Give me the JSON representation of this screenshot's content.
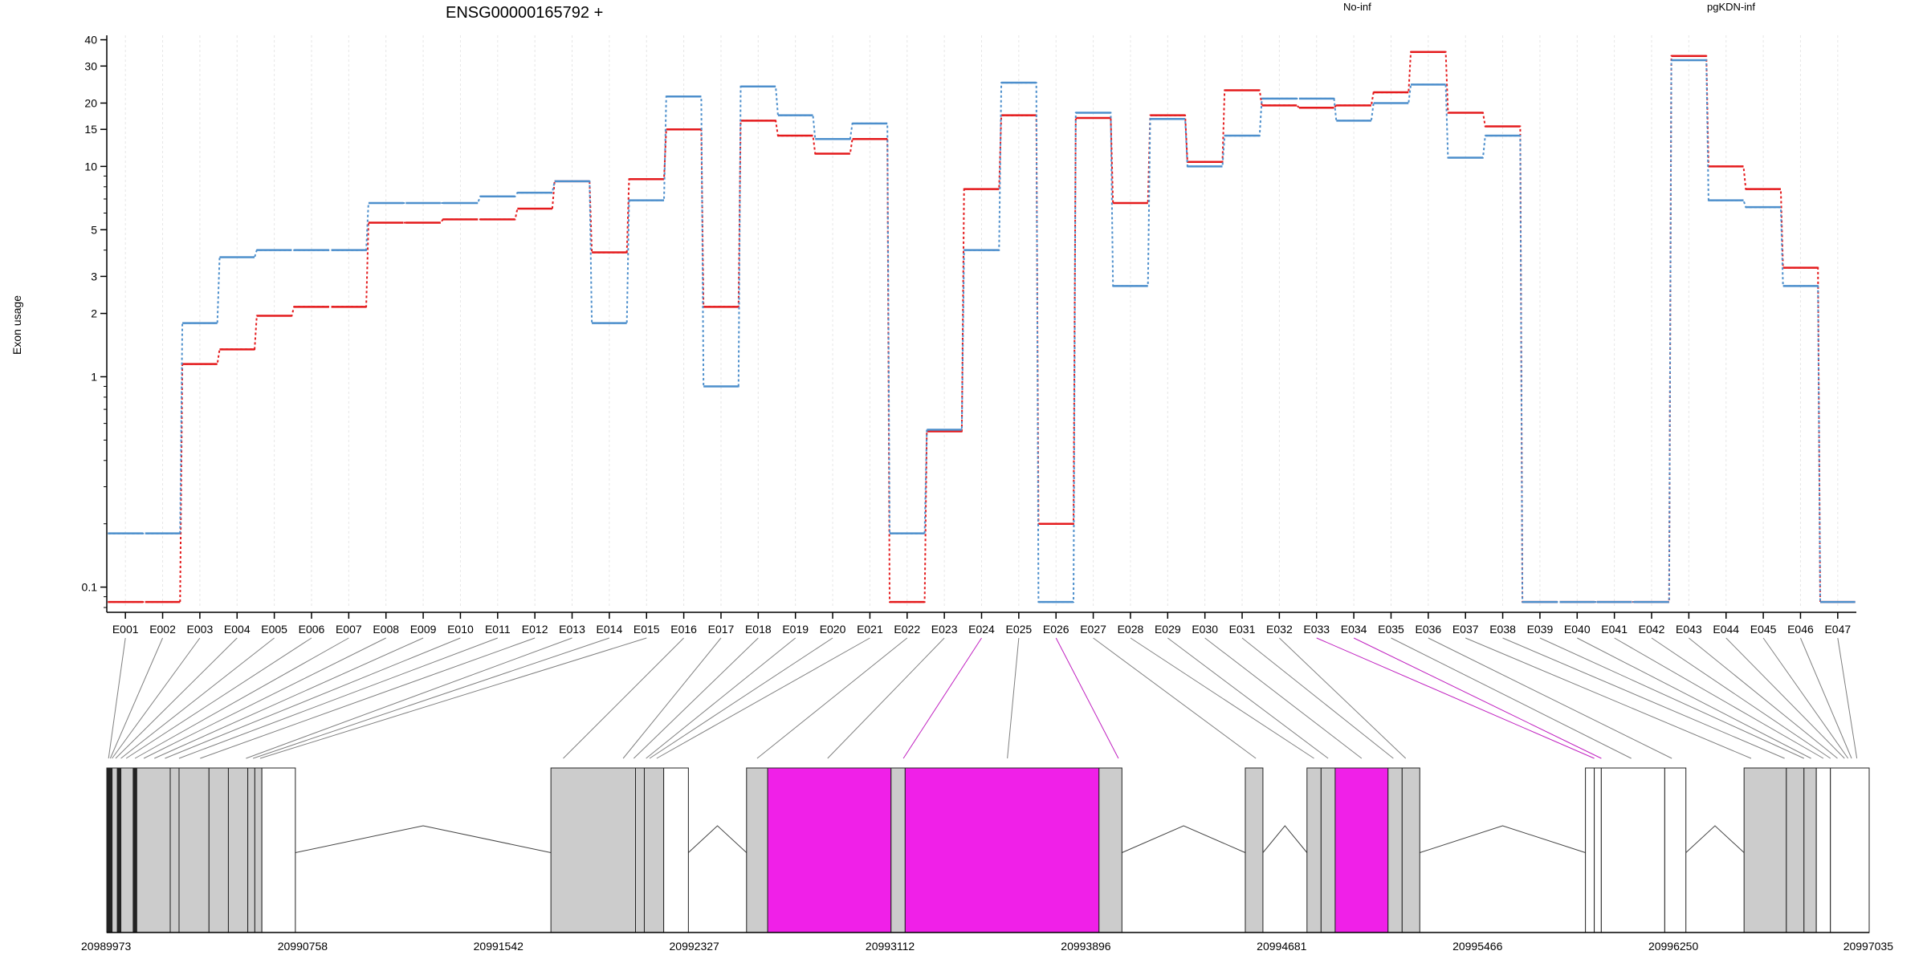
{
  "chart_data": {
    "type": "line",
    "title": "ENSG00000165792 +",
    "ylabel": "Exon usage",
    "xlabel": "",
    "y_scale": "log",
    "ylim": [
      0.08,
      42
    ],
    "y_ticks": [
      0.1,
      1,
      2,
      3,
      5,
      10,
      15,
      20,
      30,
      40
    ],
    "y_tick_labels": [
      "0.1",
      "1",
      "2",
      "3",
      "5",
      "10",
      "15",
      "20",
      "30",
      "40"
    ],
    "grid": "vertical",
    "legend_placement": "top",
    "categories": [
      "E001",
      "E002",
      "E003",
      "E004",
      "E005",
      "E006",
      "E007",
      "E008",
      "E009",
      "E010",
      "E011",
      "E012",
      "E013",
      "E014",
      "E015",
      "E016",
      "E017",
      "E018",
      "E019",
      "E020",
      "E021",
      "E022",
      "E023",
      "E024",
      "E025",
      "E026",
      "E027",
      "E028",
      "E029",
      "E030",
      "E031",
      "E032",
      "E033",
      "E034",
      "E035",
      "E036",
      "E037",
      "E038",
      "E039",
      "E040",
      "E041",
      "E042",
      "E043",
      "E044",
      "E045",
      "E046",
      "E047"
    ],
    "series": [
      {
        "name": "No-inf",
        "color": "#e41a1c",
        "values": [
          0.085,
          0.085,
          1.15,
          1.35,
          1.95,
          2.15,
          2.15,
          5.4,
          5.4,
          5.6,
          5.6,
          6.3,
          8.5,
          3.9,
          8.7,
          15,
          2.15,
          16.5,
          14,
          11.5,
          13.5,
          0.085,
          0.55,
          7.8,
          17.5,
          0.2,
          17,
          6.7,
          17.5,
          10.5,
          23,
          19.5,
          19,
          19.5,
          22.5,
          35,
          18,
          15.5,
          0.085,
          0.085,
          0.085,
          0.085,
          33.5,
          10,
          7.8,
          3.3,
          0.085
        ]
      },
      {
        "name": "pgKDN-inf",
        "color": "#4d8fcc",
        "values": [
          0.18,
          0.18,
          1.8,
          3.7,
          4,
          4,
          4,
          6.7,
          6.7,
          6.7,
          7.2,
          7.5,
          8.5,
          1.8,
          6.9,
          21.5,
          0.9,
          24,
          17.5,
          13.5,
          16,
          0.18,
          0.56,
          4,
          25,
          0.085,
          18,
          2.7,
          16.8,
          10,
          14,
          21,
          21,
          16.5,
          20,
          24.5,
          11,
          14,
          0.085,
          0.085,
          0.085,
          0.085,
          32,
          6.9,
          6.4,
          2.7,
          0.085
        ]
      }
    ],
    "gene_model": {
      "coordinate_ticks": [
        "20989973",
        "20990758",
        "20991542",
        "20992327",
        "20993112",
        "20993896",
        "20994681",
        "20995466",
        "20996250",
        "20997035"
      ],
      "blocks": [
        {
          "start": 0.0,
          "end": 0.003,
          "fill": "#222222"
        },
        {
          "start": 0.003,
          "end": 0.006,
          "fill": "#cccccc"
        },
        {
          "start": 0.006,
          "end": 0.008,
          "fill": "#222222"
        },
        {
          "start": 0.008,
          "end": 0.015,
          "fill": "#cccccc"
        },
        {
          "start": 0.015,
          "end": 0.017,
          "fill": "#222222"
        },
        {
          "start": 0.017,
          "end": 0.036,
          "fill": "#cccccc"
        },
        {
          "start": 0.036,
          "end": 0.041,
          "fill": "#cccccc"
        },
        {
          "start": 0.041,
          "end": 0.058,
          "fill": "#cccccc"
        },
        {
          "start": 0.058,
          "end": 0.069,
          "fill": "#cccccc"
        },
        {
          "start": 0.069,
          "end": 0.08,
          "fill": "#cccccc"
        },
        {
          "start": 0.08,
          "end": 0.084,
          "fill": "#cccccc"
        },
        {
          "start": 0.084,
          "end": 0.088,
          "fill": "#cccccc"
        },
        {
          "start": 0.088,
          "end": 0.107,
          "fill": "#ffffff"
        },
        {
          "start": 0.252,
          "end": 0.3,
          "fill": "#cccccc"
        },
        {
          "start": 0.3,
          "end": 0.305,
          "fill": "#cccccc"
        },
        {
          "start": 0.305,
          "end": 0.316,
          "fill": "#cccccc"
        },
        {
          "start": 0.316,
          "end": 0.33,
          "fill": "#ffffff"
        },
        {
          "start": 0.363,
          "end": 0.375,
          "fill": "#cccccc"
        },
        {
          "start": 0.375,
          "end": 0.445,
          "fill": "#f020e8"
        },
        {
          "start": 0.445,
          "end": 0.453,
          "fill": "#cccccc"
        },
        {
          "start": 0.453,
          "end": 0.563,
          "fill": "#f020e8"
        },
        {
          "start": 0.563,
          "end": 0.576,
          "fill": "#cccccc"
        },
        {
          "start": 0.646,
          "end": 0.656,
          "fill": "#cccccc"
        },
        {
          "start": 0.681,
          "end": 0.689,
          "fill": "#cccccc"
        },
        {
          "start": 0.689,
          "end": 0.697,
          "fill": "#cccccc"
        },
        {
          "start": 0.697,
          "end": 0.727,
          "fill": "#f020e8"
        },
        {
          "start": 0.727,
          "end": 0.735,
          "fill": "#cccccc"
        },
        {
          "start": 0.735,
          "end": 0.745,
          "fill": "#cccccc"
        },
        {
          "start": 0.839,
          "end": 0.844,
          "fill": "#ffffff"
        },
        {
          "start": 0.844,
          "end": 0.848,
          "fill": "#ffffff"
        },
        {
          "start": 0.848,
          "end": 0.884,
          "fill": "#ffffff"
        },
        {
          "start": 0.884,
          "end": 0.896,
          "fill": "#ffffff"
        },
        {
          "start": 0.929,
          "end": 0.953,
          "fill": "#cccccc"
        },
        {
          "start": 0.953,
          "end": 0.963,
          "fill": "#cccccc"
        },
        {
          "start": 0.963,
          "end": 0.97,
          "fill": "#cccccc"
        },
        {
          "start": 0.97,
          "end": 0.978,
          "fill": "#ffffff"
        },
        {
          "start": 0.978,
          "end": 1.0,
          "fill": "#ffffff"
        }
      ],
      "introns": [
        {
          "start": 0.107,
          "end": 0.252
        },
        {
          "start": 0.33,
          "end": 0.363
        },
        {
          "start": 0.576,
          "end": 0.646
        },
        {
          "start": 0.656,
          "end": 0.681
        },
        {
          "start": 0.745,
          "end": 0.839
        },
        {
          "start": 0.896,
          "end": 0.929
        }
      ],
      "exon_positions": [
        0.001,
        0.002,
        0.003,
        0.005,
        0.008,
        0.011,
        0.016,
        0.021,
        0.027,
        0.033,
        0.041,
        0.053,
        0.079,
        0.083,
        0.087,
        0.259,
        0.293,
        0.299,
        0.306,
        0.308,
        0.312,
        0.369,
        0.409,
        0.452,
        0.511,
        0.574,
        0.652,
        0.685,
        0.693,
        0.712,
        0.73,
        0.737,
        0.844,
        0.848,
        0.865,
        0.888,
        0.933,
        0.952,
        0.963,
        0.967,
        0.974,
        0.978,
        0.982,
        0.986,
        0.988,
        0.99,
        0.993
      ],
      "exon_link_colors": [
        "#808080",
        "#808080",
        "#808080",
        "#808080",
        "#808080",
        "#808080",
        "#808080",
        "#808080",
        "#808080",
        "#808080",
        "#808080",
        "#808080",
        "#808080",
        "#808080",
        "#808080",
        "#808080",
        "#808080",
        "#808080",
        "#808080",
        "#808080",
        "#808080",
        "#808080",
        "#808080",
        "#c020c0",
        "#808080",
        "#c020c0",
        "#808080",
        "#808080",
        "#808080",
        "#808080",
        "#808080",
        "#808080",
        "#c020c0",
        "#c020c0",
        "#808080",
        "#808080",
        "#808080",
        "#808080",
        "#808080",
        "#808080",
        "#808080",
        "#808080",
        "#808080",
        "#808080",
        "#808080",
        "#808080",
        "#808080"
      ]
    }
  }
}
